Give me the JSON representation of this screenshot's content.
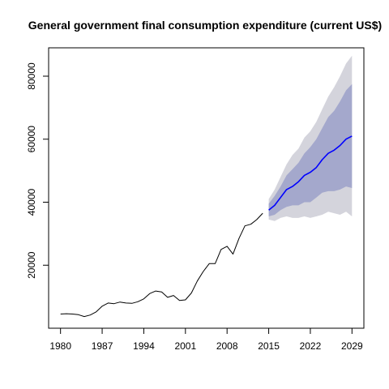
{
  "chart_data": {
    "type": "line",
    "title": "General government final consumption expenditure (current US$)",
    "xlabel": "",
    "ylabel": "",
    "xlim": [
      1978,
      2031
    ],
    "ylim": [
      0,
      89000
    ],
    "x_ticks": [
      1980,
      1987,
      1994,
      2001,
      2008,
      2015,
      2022,
      2029
    ],
    "y_ticks": [
      20000,
      40000,
      60000,
      80000
    ],
    "grid": false,
    "legend": "none",
    "series": [
      {
        "color": "#000000",
        "points": [
          {
            "x": 1980,
            "y": 4500
          },
          {
            "x": 1981,
            "y": 4600
          },
          {
            "x": 1982,
            "y": 4500
          },
          {
            "x": 1983,
            "y": 4300
          },
          {
            "x": 1984,
            "y": 3700
          },
          {
            "x": 1985,
            "y": 4200
          },
          {
            "x": 1986,
            "y": 5200
          },
          {
            "x": 1987,
            "y": 7000
          },
          {
            "x": 1988,
            "y": 8000
          },
          {
            "x": 1989,
            "y": 7800
          },
          {
            "x": 1990,
            "y": 8300
          },
          {
            "x": 1991,
            "y": 8000
          },
          {
            "x": 1992,
            "y": 7900
          },
          {
            "x": 1993,
            "y": 8400
          },
          {
            "x": 1994,
            "y": 9300
          },
          {
            "x": 1995,
            "y": 11000
          },
          {
            "x": 1996,
            "y": 11800
          },
          {
            "x": 1997,
            "y": 11500
          },
          {
            "x": 1998,
            "y": 9800
          },
          {
            "x": 1999,
            "y": 10400
          },
          {
            "x": 2000,
            "y": 8800
          },
          {
            "x": 2001,
            "y": 9000
          },
          {
            "x": 2002,
            "y": 11200
          },
          {
            "x": 2003,
            "y": 15000
          },
          {
            "x": 2004,
            "y": 18000
          },
          {
            "x": 2005,
            "y": 20500
          },
          {
            "x": 2006,
            "y": 20500
          },
          {
            "x": 2007,
            "y": 25000
          },
          {
            "x": 2008,
            "y": 26000
          },
          {
            "x": 2009,
            "y": 23500
          },
          {
            "x": 2010,
            "y": 28500
          },
          {
            "x": 2011,
            "y": 32500
          },
          {
            "x": 2012,
            "y": 33000
          },
          {
            "x": 2013,
            "y": 34500
          },
          {
            "x": 2014,
            "y": 36500
          }
        ]
      },
      {
        "color": "#0000ff",
        "points": [
          {
            "x": 2015,
            "y": 37500
          },
          {
            "x": 2016,
            "y": 39000
          },
          {
            "x": 2017,
            "y": 41500
          },
          {
            "x": 2018,
            "y": 44000
          },
          {
            "x": 2019,
            "y": 45000
          },
          {
            "x": 2020,
            "y": 46500
          },
          {
            "x": 2021,
            "y": 48500
          },
          {
            "x": 2022,
            "y": 49500
          },
          {
            "x": 2023,
            "y": 51000
          },
          {
            "x": 2024,
            "y": 53500
          },
          {
            "x": 2025,
            "y": 55500
          },
          {
            "x": 2026,
            "y": 56500
          },
          {
            "x": 2027,
            "y": 58000
          },
          {
            "x": 2028,
            "y": 60000
          },
          {
            "x": 2029,
            "y": 61000
          }
        ]
      }
    ],
    "bands": [
      {
        "color": "#d4d4dc",
        "x": [
          2015,
          2016,
          2017,
          2018,
          2019,
          2020,
          2021,
          2022,
          2023,
          2024,
          2025,
          2026,
          2027,
          2028,
          2029
        ],
        "lower": [
          34500,
          34000,
          35000,
          35500,
          35000,
          35000,
          35500,
          35000,
          35500,
          36000,
          37000,
          36500,
          36000,
          37000,
          35500
        ],
        "upper": [
          41000,
          44000,
          48000,
          52000,
          55000,
          57000,
          60500,
          62500,
          65500,
          69500,
          73500,
          76500,
          80000,
          84000,
          86500
        ]
      },
      {
        "color": "#a4a8cc",
        "x": [
          2015,
          2016,
          2017,
          2018,
          2019,
          2020,
          2021,
          2022,
          2023,
          2024,
          2025,
          2026,
          2027,
          2028,
          2029
        ],
        "lower": [
          35500,
          36000,
          37500,
          38500,
          39000,
          39000,
          40000,
          40000,
          41500,
          43000,
          43500,
          43500,
          44000,
          45000,
          44500
        ],
        "upper": [
          39500,
          42000,
          45000,
          48500,
          50500,
          52500,
          55500,
          57500,
          60000,
          63500,
          67000,
          69000,
          72000,
          75500,
          77500
        ]
      }
    ]
  }
}
